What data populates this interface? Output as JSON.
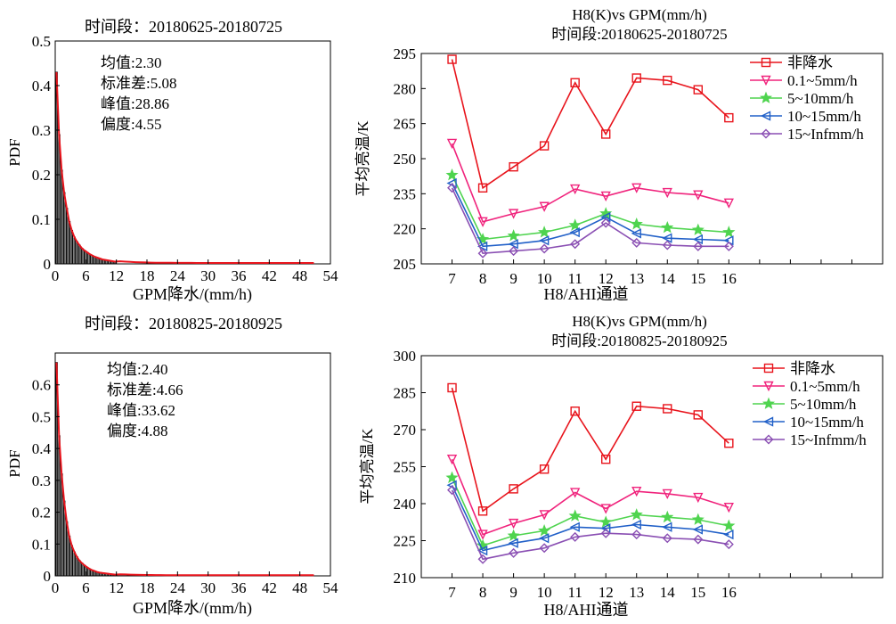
{
  "chart_data": [
    {
      "type": "bar",
      "title": "时间段：20180625-20180725",
      "xlabel": "GPM降水/(mm/h)",
      "ylabel": "PDF",
      "xlim": [
        0,
        54
      ],
      "ylim": [
        0,
        0.5
      ],
      "xticks": [
        "0",
        "6",
        "12",
        "18",
        "24",
        "30",
        "36",
        "42",
        "48",
        "54"
      ],
      "yticks": [
        "0",
        "0.1",
        "0.2",
        "0.3",
        "0.4",
        "0.5"
      ],
      "stats": [
        "均值:2.30",
        "标准差:5.08",
        "峰值:28.86",
        "偏度:4.55"
      ],
      "bin_width": 0.5,
      "values": [
        0.43,
        0.29,
        0.21,
        0.16,
        0.125,
        0.095,
        0.075,
        0.06,
        0.05,
        0.042,
        0.035,
        0.03,
        0.026,
        0.022,
        0.019,
        0.016,
        0.014,
        0.012,
        0.01,
        0.009,
        0.008,
        0.007,
        0.006,
        0.005
      ],
      "fit_color": "#e8141c",
      "bar_color": "#000000"
    },
    {
      "type": "line",
      "title": "H8(K)vs GPM(mm/h)",
      "subtitle": "时间段:20180625-20180725",
      "xlabel": "H8/AHI通道",
      "ylabel": "平均亮温/K",
      "xlim": [
        6,
        21
      ],
      "ylim": [
        205,
        295
      ],
      "categories": [
        7,
        8,
        9,
        10,
        11,
        12,
        13,
        14,
        15,
        16
      ],
      "yticks": [
        "205",
        "220",
        "235",
        "250",
        "265",
        "280",
        "295"
      ],
      "legend_position": "top-right",
      "series": [
        {
          "name": "非降水",
          "marker": "square",
          "color": "#e8141c",
          "values": [
            292.5,
            237.5,
            246.5,
            255.5,
            282.5,
            260.5,
            284.5,
            283.5,
            279.5,
            267.5
          ]
        },
        {
          "name": "0.1~5mm/h",
          "marker": "triangle-down",
          "color": "#f0237c",
          "values": [
            256.5,
            223,
            226.5,
            229.5,
            237,
            234,
            237.5,
            235.5,
            234.5,
            231
          ]
        },
        {
          "name": "5~10mm/h",
          "marker": "star",
          "color": "#4fd44f",
          "values": [
            243,
            215.5,
            217,
            218.5,
            221.5,
            226.5,
            222,
            220.5,
            219.5,
            218.5
          ]
        },
        {
          "name": "10~15mm/h",
          "marker": "triangle-left",
          "color": "#2160c8",
          "values": [
            239.5,
            212.5,
            213.5,
            215,
            218.5,
            225,
            218,
            216,
            215.5,
            215
          ]
        },
        {
          "name": "15~Infmm/h",
          "marker": "diamond",
          "color": "#8a4fb3",
          "values": [
            237.5,
            209.5,
            210.5,
            211.5,
            213.5,
            222.5,
            214,
            213,
            212.5,
            212.5
          ]
        }
      ]
    },
    {
      "type": "bar",
      "title": "时间段：20180825-20180925",
      "xlabel": "GPM降水/(mm/h)",
      "ylabel": "PDF",
      "xlim": [
        0,
        54
      ],
      "ylim": [
        0,
        0.7
      ],
      "xticks": [
        "0",
        "6",
        "12",
        "18",
        "24",
        "30",
        "36",
        "42",
        "48",
        "54"
      ],
      "yticks": [
        "0",
        "0.1",
        "0.2",
        "0.3",
        "0.4",
        "0.5",
        "0.6"
      ],
      "stats": [
        "均值:2.40",
        "标准差:4.66",
        "峰值:33.62",
        "偏度:4.88"
      ],
      "bin_width": 0.5,
      "values": [
        0.67,
        0.44,
        0.32,
        0.235,
        0.17,
        0.125,
        0.095,
        0.075,
        0.06,
        0.048,
        0.04,
        0.033,
        0.027,
        0.022,
        0.018,
        0.015,
        0.012,
        0.01,
        0.009,
        0.008,
        0.007,
        0.006,
        0.005,
        0.004
      ],
      "fit_color": "#e8141c",
      "bar_color": "#000000"
    },
    {
      "type": "line",
      "title": "H8(K)vs GPM(mm/h)",
      "subtitle": "时间段:20180825-20180925",
      "xlabel": "H8/AHI通道",
      "ylabel": "平均亮温/K",
      "xlim": [
        6,
        21
      ],
      "ylim": [
        210,
        300
      ],
      "categories": [
        7,
        8,
        9,
        10,
        11,
        12,
        13,
        14,
        15,
        16
      ],
      "yticks": [
        "210",
        "225",
        "240",
        "255",
        "270",
        "285",
        "300"
      ],
      "legend_position": "top-right",
      "series": [
        {
          "name": "非降水",
          "marker": "square",
          "color": "#e8141c",
          "values": [
            287,
            237,
            246,
            254,
            277.5,
            258,
            279.5,
            278.5,
            276,
            264.5
          ]
        },
        {
          "name": "0.1~5mm/h",
          "marker": "triangle-down",
          "color": "#f0237c",
          "values": [
            258,
            227.5,
            232,
            235.5,
            244.5,
            238,
            245,
            244,
            242.5,
            238.5
          ]
        },
        {
          "name": "5~10mm/h",
          "marker": "star",
          "color": "#4fd44f",
          "values": [
            250.5,
            223,
            227,
            229,
            235,
            232.5,
            235.5,
            234.5,
            233.5,
            231
          ]
        },
        {
          "name": "10~15mm/h",
          "marker": "triangle-left",
          "color": "#2160c8",
          "values": [
            247.5,
            221,
            224,
            226,
            230.5,
            230,
            231.5,
            230.5,
            229.5,
            227.5
          ]
        },
        {
          "name": "15~Infmm/h",
          "marker": "diamond",
          "color": "#8a4fb3",
          "values": [
            245.5,
            217.5,
            220,
            222,
            226.5,
            228,
            227.5,
            226,
            225.5,
            223.5
          ]
        }
      ]
    }
  ]
}
